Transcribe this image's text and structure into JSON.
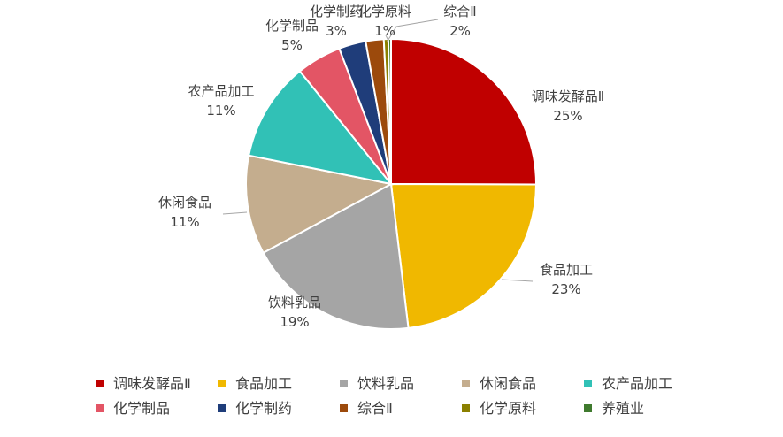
{
  "chart_data": {
    "type": "pie",
    "title": "",
    "legend_position": "bottom",
    "slices": [
      {
        "name": "调味发酵品Ⅱ",
        "value": 25,
        "label": "25%",
        "color": "#C00000"
      },
      {
        "name": "食品加工",
        "value": 23,
        "label": "23%",
        "color": "#F0B800"
      },
      {
        "name": "饮料乳品",
        "value": 19,
        "label": "19%",
        "color": "#A5A5A5"
      },
      {
        "name": "休闲食品",
        "value": 11,
        "label": "11%",
        "color": "#C4AD8E"
      },
      {
        "name": "农产品加工",
        "value": 11,
        "label": "11%",
        "color": "#31C1B6"
      },
      {
        "name": "化学制品",
        "value": 5,
        "label": "5%",
        "color": "#E35565"
      },
      {
        "name": "化学制药",
        "value": 3,
        "label": "3%",
        "color": "#1F3D7A"
      },
      {
        "name": "综合Ⅱ",
        "value": 2,
        "label": "2%",
        "color": "#9C4A0C"
      },
      {
        "name": "化学原料",
        "value": 0.5,
        "label": "1%",
        "color": "#8B8000"
      },
      {
        "name": "养殖业",
        "value": 0.3,
        "label": "",
        "color": "#3F7A2E"
      }
    ]
  }
}
